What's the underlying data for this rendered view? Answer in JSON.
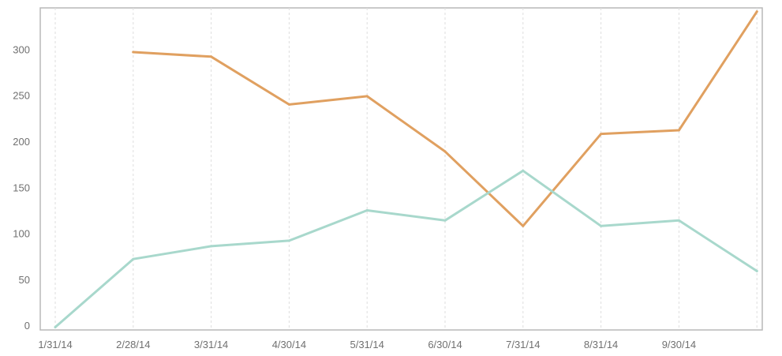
{
  "chart_data": {
    "type": "line",
    "x": [
      "1/31/14",
      "2/28/14",
      "3/31/14",
      "4/30/14",
      "5/31/14",
      "6/30/14",
      "7/31/14",
      "8/31/14",
      "9/30/14",
      ""
    ],
    "y_ticks": [
      "0",
      "50",
      "100",
      "150",
      "200",
      "250",
      "300"
    ],
    "ylim": [
      -5,
      345
    ],
    "grid_x": true,
    "grid_y": false,
    "series": [
      {
        "color": "#e0a060",
        "values": [
          null,
          297,
          292,
          240,
          249,
          189,
          108,
          208,
          212,
          341
        ]
      },
      {
        "color": "#a8d8cc",
        "values": [
          -2,
          72,
          86,
          92,
          125,
          114,
          168,
          108,
          114,
          59
        ]
      }
    ]
  }
}
